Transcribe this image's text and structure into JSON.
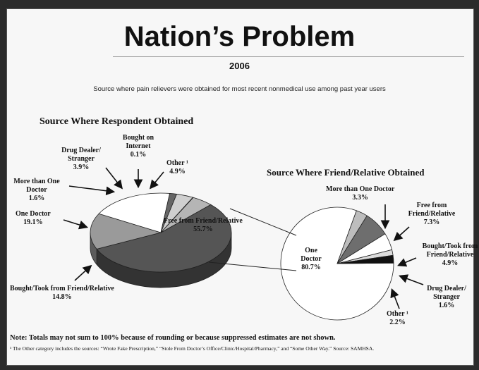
{
  "header": {
    "title": "Nation’s Problem",
    "year": "2006",
    "subtitle": "Source where pain relievers were obtained for most recent nonmedical use among past year users"
  },
  "chart_data": [
    {
      "type": "pie",
      "title": "Source Where Respondent Obtained",
      "style": "3d-exploded",
      "slices": [
        {
          "name": "Free from Friend/Relative",
          "value": 55.7,
          "label": "55.7%",
          "color": "#555555"
        },
        {
          "name": "Bought/Took from Friend/Relative",
          "value": 14.8,
          "label": "14.8%",
          "color": "#9a9a9a"
        },
        {
          "name": "One Doctor",
          "value": 19.1,
          "label": "19.1%",
          "color": "#ffffff"
        },
        {
          "name": "More than One Doctor",
          "value": 1.6,
          "label": "1.6%",
          "color": "#666666"
        },
        {
          "name": "Drug Dealer/ Stranger",
          "value": 3.9,
          "label": "3.9%",
          "color": "#d0d0d0"
        },
        {
          "name": "Bought on Internet",
          "value": 0.1,
          "label": "0.1%",
          "color": "#111111"
        },
        {
          "name": "Other ¹",
          "value": 4.9,
          "label": "4.9%",
          "color": "#b5b5b5"
        }
      ]
    },
    {
      "type": "pie",
      "title": "Source Where Friend/Relative Obtained",
      "slices": [
        {
          "name": "One Doctor",
          "value": 80.7,
          "label": "80.7%",
          "color": "#ffffff"
        },
        {
          "name": "More than One Doctor",
          "value": 3.3,
          "label": "3.3%",
          "color": "#bdbdbd"
        },
        {
          "name": "Free from Friend/Relative",
          "value": 7.3,
          "label": "7.3%",
          "color": "#6e6e6e"
        },
        {
          "name": "Bought/Took from Friend/Relative",
          "value": 4.9,
          "label": "4.9%",
          "color": "#ffffff"
        },
        {
          "name": "Drug Dealer/ Stranger",
          "value": 1.6,
          "label": "1.6%",
          "color": "#dcdcdc"
        },
        {
          "name": "Other ¹",
          "value": 2.2,
          "label": "2.2%",
          "color": "#111111"
        }
      ]
    }
  ],
  "notes": {
    "note": "Note: Totals may not sum to 100% because of rounding or because suppressed estimates are not shown.",
    "footnote": "¹ The Other category includes the sources: “Wrote Fake Prescription,” “Stole From Doctor’s Office/Clinic/Hospital/Pharmacy,” and “Some Other Way.” Source: SAMHSA."
  }
}
